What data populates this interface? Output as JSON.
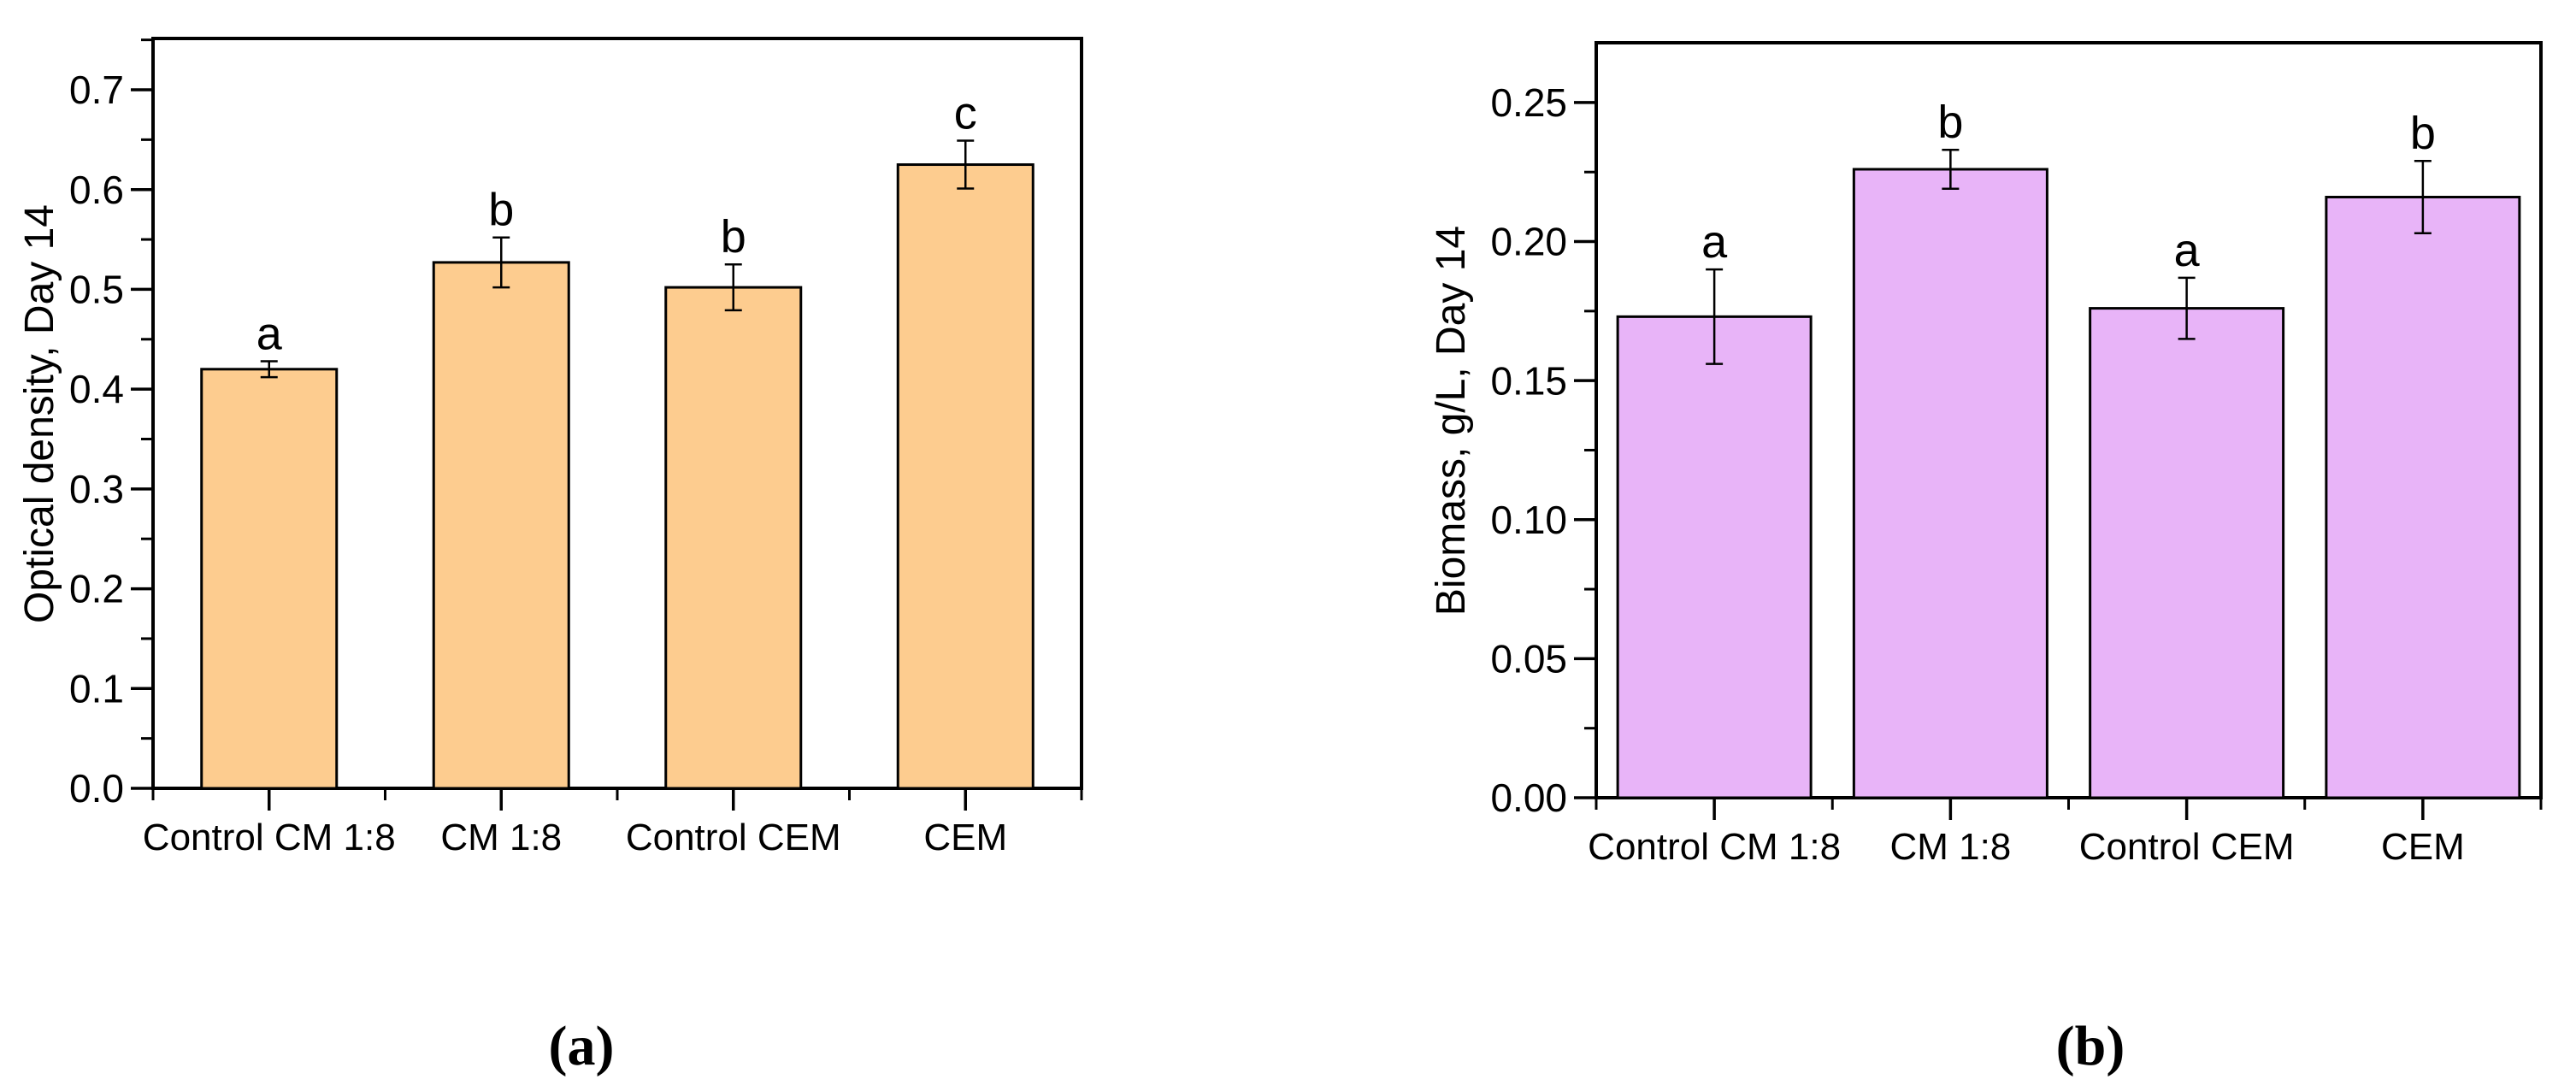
{
  "figure": {
    "background": "#ffffff",
    "frame_color": "#000000"
  },
  "chart_data": [
    {
      "type": "bar",
      "panel_label": "(a)",
      "title": "",
      "xlabel": "",
      "ylabel": "Optical density, Day 14",
      "categories": [
        "Control CM 1:8",
        "CM 1:8",
        "Control CEM",
        "CEM"
      ],
      "values": [
        0.42,
        0.527,
        0.502,
        0.625
      ],
      "errors": [
        0.008,
        0.025,
        0.023,
        0.024
      ],
      "sig_letters": [
        "a",
        "b",
        "b",
        "c"
      ],
      "bar_fill": "#FDCC8F",
      "bar_edge": "#000000",
      "ylim": [
        0,
        0.7514
      ],
      "ytick_major_step": 0.1,
      "ytick_minor_step": 0.05,
      "ytick_decimals": 1,
      "grid": false,
      "legend": null
    },
    {
      "type": "bar",
      "panel_label": "(b)",
      "title": "",
      "xlabel": "",
      "ylabel": "Biomass, g/L, Day 14",
      "categories": [
        "Control CM 1:8",
        "CM 1:8",
        "Control CEM",
        "CEM"
      ],
      "values": [
        0.173,
        0.226,
        0.176,
        0.216
      ],
      "errors": [
        0.017,
        0.007,
        0.011,
        0.013
      ],
      "sig_letters": [
        "a",
        "b",
        "a",
        "b"
      ],
      "bar_fill": "#E8B4F8",
      "bar_edge": "#000000",
      "ylim": [
        0,
        0.2715
      ],
      "ytick_major_step": 0.05,
      "ytick_minor_step": 0.025,
      "ytick_decimals": 2,
      "grid": false,
      "legend": null
    }
  ]
}
